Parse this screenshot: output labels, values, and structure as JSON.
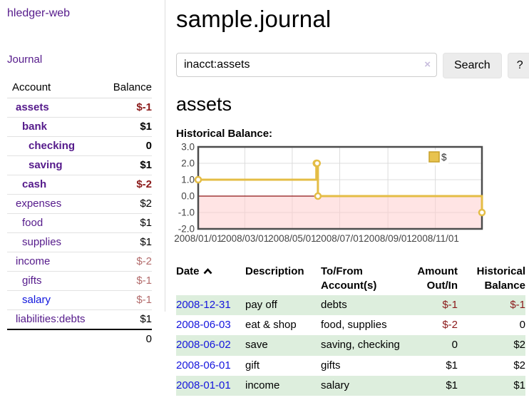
{
  "app": {
    "brand": "hledger-web"
  },
  "sidebar": {
    "journal_link": "Journal",
    "table": {
      "account_header": "Account",
      "balance_header": "Balance"
    },
    "accounts": [
      {
        "name": "assets",
        "indent": 1,
        "bold": true,
        "balance": "$-1",
        "balance_style": "neg-strong"
      },
      {
        "name": "bank",
        "indent": 2,
        "bold": true,
        "balance": "$1",
        "balance_style": "pos"
      },
      {
        "name": "checking",
        "indent": 3,
        "bold": true,
        "balance": "0",
        "balance_style": "pos"
      },
      {
        "name": "saving",
        "indent": 3,
        "bold": true,
        "balance": "$1",
        "balance_style": "pos"
      },
      {
        "name": "cash",
        "indent": 2,
        "bold": true,
        "balance": "$-2",
        "balance_style": "neg-strong"
      },
      {
        "name": "expenses",
        "indent": 1,
        "bold": false,
        "balance": "$2",
        "balance_style": "pos"
      },
      {
        "name": "food",
        "indent": 2,
        "bold": false,
        "balance": "$1",
        "balance_style": "pos"
      },
      {
        "name": "supplies",
        "indent": 2,
        "bold": false,
        "balance": "$1",
        "balance_style": "pos"
      },
      {
        "name": "income",
        "indent": 1,
        "bold": false,
        "balance": "$-2",
        "balance_style": "neg-muted"
      },
      {
        "name": "gifts",
        "indent": 2,
        "bold": false,
        "balance": "$-1",
        "balance_style": "neg-muted"
      },
      {
        "name": "salary",
        "indent": 2,
        "bold": false,
        "balance": "$-1",
        "balance_style": "neg-muted",
        "link": "blue"
      },
      {
        "name": "liabilities:debts",
        "indent": 1,
        "bold": false,
        "balance": "$1",
        "balance_style": "pos"
      }
    ],
    "total": "0"
  },
  "header": {
    "title": "sample.journal"
  },
  "search": {
    "value": "inacct:assets",
    "clear_icon": "×",
    "search_button": "Search",
    "help_button": "?"
  },
  "account_page": {
    "title": "assets",
    "chart_label": "Historical Balance:"
  },
  "chart_data": {
    "type": "line",
    "style": "step",
    "title": "Historical Balance:",
    "series": [
      {
        "name": "$",
        "color": "#e4bd45",
        "marker_fill": "#ffffff",
        "points": [
          [
            "2008-01-01",
            1
          ],
          [
            "2008-06-01",
            2
          ],
          [
            "2008-06-02",
            2
          ],
          [
            "2008-06-03",
            0
          ],
          [
            "2008-12-31",
            -1
          ]
        ]
      }
    ],
    "xlim": [
      "2008-01-01",
      "2008-12-31"
    ],
    "ylim": [
      -2,
      3
    ],
    "xticks": [
      "2008/01/01",
      "2008/03/01",
      "2008/05/01",
      "2008/07/01",
      "2008/09/01",
      "2008/11/01"
    ],
    "yticks": [
      "3.0",
      "2.0",
      "1.0",
      "0.0",
      "-1.0",
      "-2.0"
    ],
    "grid": true,
    "grid_color": "#dcdcdc",
    "border_color": "#4c4c4c",
    "tick_color": "#444444",
    "negative_region_color": "rgba(255,205,205,0.55)",
    "zero_line_color": "#8e1414",
    "legend": {
      "label": "$",
      "position": "top-right",
      "swatch_fill": "#e8c34f",
      "swatch_border": "#c7a028"
    }
  },
  "register": {
    "columns": {
      "date": "Date",
      "description": "Description",
      "tofrom": "To/From Account(s)",
      "amount": "Amount Out/In",
      "balance": "Historical Balance"
    },
    "sort_icon": "chevron-up",
    "rows": [
      {
        "date": "2008-12-31",
        "description": "pay off",
        "accounts": "debts",
        "amount": "$-1",
        "amount_neg": true,
        "balance": "$-1",
        "balance_neg": true
      },
      {
        "date": "2008-06-03",
        "description": "eat & shop",
        "accounts": "food, supplies",
        "amount": "$-2",
        "amount_neg": true,
        "balance": "0",
        "balance_neg": false
      },
      {
        "date": "2008-06-02",
        "description": "save",
        "accounts": "saving, checking",
        "amount": "0",
        "amount_neg": false,
        "balance": "$2",
        "balance_neg": false
      },
      {
        "date": "2008-06-01",
        "description": "gift",
        "accounts": "gifts",
        "amount": "$1",
        "amount_neg": false,
        "balance": "$2",
        "balance_neg": false
      },
      {
        "date": "2008-01-01",
        "description": "income",
        "accounts": "salary",
        "amount": "$1",
        "amount_neg": false,
        "balance": "$1",
        "balance_neg": false
      }
    ]
  },
  "colors": {
    "link_purple": "#551a8b",
    "link_blue": "#1515dd",
    "negative_strong": "#8b1a1a",
    "negative_muted": "#b36b6b",
    "row_stripe_green": "#ddeedd",
    "button_bg": "#ececec"
  }
}
